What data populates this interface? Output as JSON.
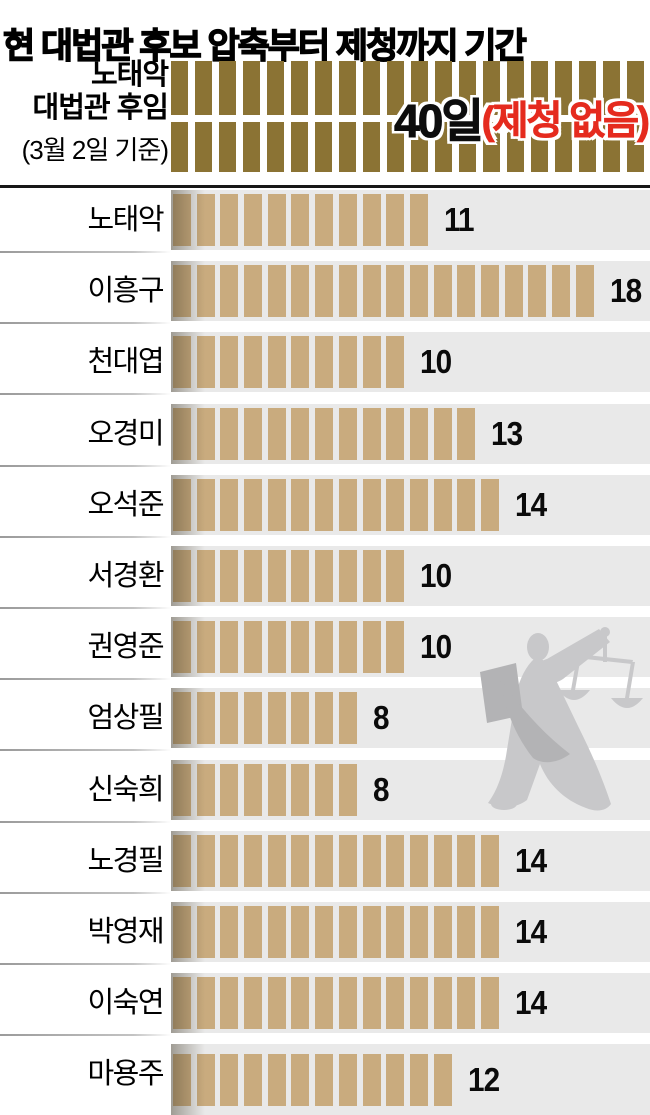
{
  "title": "현 대법관 후보 압축부터 제청까지 기간",
  "top_section": {
    "label_lines": [
      "노태악",
      "대법관 후임",
      "(3월 2일 기준)"
    ],
    "days": 40,
    "value_label": "40일",
    "value_note": "(제청 없음)",
    "ticks_per_row": 20
  },
  "chart_data": {
    "type": "bar",
    "title": "현 대법관 후보 압축부터 제청까지 기간",
    "orientation": "horizontal",
    "unit": "일 (days)",
    "style": "tally-tick segmented bars",
    "highlight_row": {
      "label": "노태악 대법관 후임 (3월 2일 기준)",
      "value": 40,
      "annotation": "40일(제청 없음)"
    },
    "categories": [
      "노태악",
      "이흥구",
      "천대엽",
      "오경미",
      "오석준",
      "서경환",
      "권영준",
      "엄상필",
      "신숙희",
      "노경필",
      "박영재",
      "이숙연",
      "마용주"
    ],
    "values": [
      11,
      18,
      10,
      13,
      14,
      10,
      10,
      8,
      8,
      14,
      14,
      14,
      12
    ],
    "value_labels": [
      "11",
      "18",
      "10",
      "13",
      "14",
      "10",
      "10",
      "8",
      "8",
      "14",
      "14",
      "14",
      "12"
    ],
    "xlim": [
      0,
      20
    ],
    "legend": "none",
    "grid": false
  },
  "colors": {
    "tick_dark_gold": "#8b7334",
    "tick_tan": "#c9ab7e",
    "band_gray": "#e9e9e9",
    "accent_red": "#e52b1e",
    "text_black": "#000000",
    "watermark_gray": "#c8c8ca",
    "watermark_dark_gray": "#b3b3b5"
  },
  "watermark": {
    "name": "lady-justice"
  }
}
